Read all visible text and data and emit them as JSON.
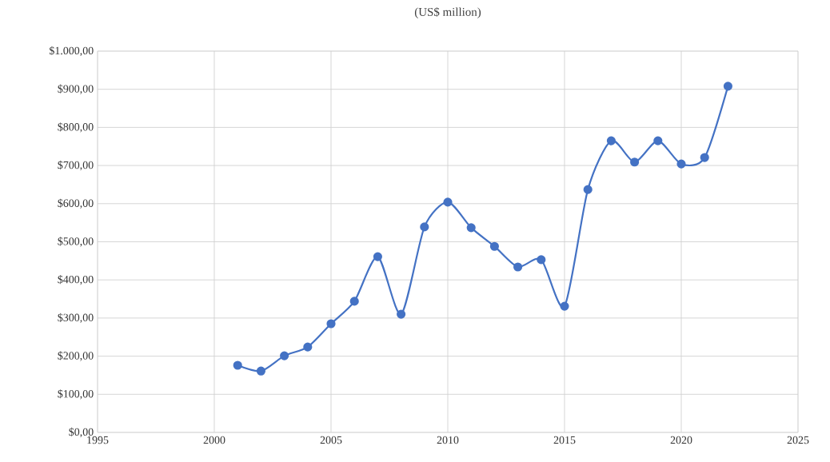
{
  "chart_data": {
    "type": "line",
    "title": "(US$ million)",
    "x": [
      2001,
      2002,
      2003,
      2004,
      2005,
      2006,
      2007,
      2008,
      2009,
      2010,
      2011,
      2012,
      2013,
      2014,
      2015,
      2016,
      2017,
      2018,
      2019,
      2020,
      2021,
      2022
    ],
    "series": [
      {
        "color": "#4472c4",
        "values": [
          176,
          161,
          201,
          224,
          285,
          344,
          461,
          310,
          539,
          604,
          537,
          488,
          434,
          453,
          331,
          637,
          765,
          709,
          765,
          704,
          721,
          908
        ]
      }
    ],
    "xlim": [
      1995,
      2025
    ],
    "xticks": [
      1995,
      2000,
      2005,
      2010,
      2015,
      2020,
      2025
    ],
    "ylim": [
      0,
      1000
    ],
    "yticks": [
      {
        "value": 0,
        "label": "$0,00"
      },
      {
        "value": 100,
        "label": "$100,00"
      },
      {
        "value": 200,
        "label": "$200,00"
      },
      {
        "value": 300,
        "label": "$300,00"
      },
      {
        "value": 400,
        "label": "$400,00"
      },
      {
        "value": 500,
        "label": "$500,00"
      },
      {
        "value": 600,
        "label": "$600,00"
      },
      {
        "value": 700,
        "label": "$700,00"
      },
      {
        "value": 800,
        "label": "$800,00"
      },
      {
        "value": 900,
        "label": "$900,00"
      },
      {
        "value": 1000,
        "label": "$1.000,00"
      }
    ],
    "grid": true,
    "marker": "circle",
    "line_style": "solid"
  }
}
